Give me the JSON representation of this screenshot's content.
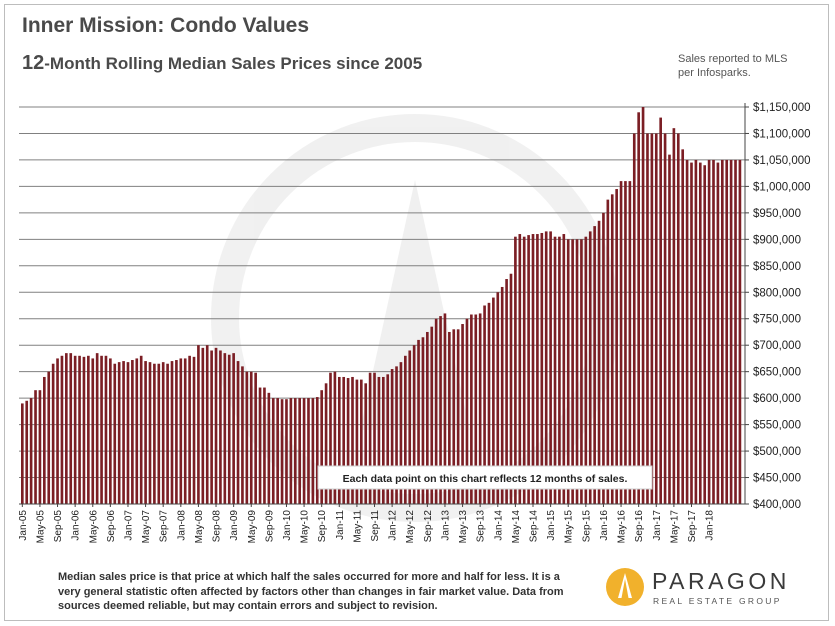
{
  "title": "Inner Mission: Condo Values",
  "subtitle_num": "12",
  "subtitle_rest": "-Month Rolling Median Sales Prices since 2005",
  "source_note": "Sales reported to MLS per Infosparks.",
  "annotation": "Each data point on this chart reflects  12 months of sales.",
  "footer": "Median sales price is that price at which half the sales occurred for more and half for less. It is a very general statistic often affected by factors other than changes in fair market value. Data from sources deemed reliable, but may contain errors and subject to revision.",
  "logo": {
    "name": "PARAGON",
    "tagline": "REAL ESTATE GROUP",
    "icon": "paragon-logo-icon",
    "accent": "#f1b12c"
  },
  "colors": {
    "bar": "#7b1e24",
    "grid": "#808080",
    "axis": "#444444"
  },
  "chart_data": {
    "type": "bar",
    "title": "Inner Mission: Condo Values",
    "subtitle": "12-Month Rolling Median Sales Prices since 2005",
    "x_start": "Jan-05",
    "x_end": "Apr-18",
    "x_ticks": [
      "Jan-05",
      "May-05",
      "Sep-05",
      "Jan-06",
      "May-06",
      "Sep-06",
      "Jan-07",
      "May-07",
      "Sep-07",
      "Jan-08",
      "May-08",
      "Sep-08",
      "Jan-09",
      "May-09",
      "Sep-09",
      "Jan-10",
      "May-10",
      "Sep-10",
      "Jan-11",
      "May-11",
      "Sep-11",
      "Jan-12",
      "May-12",
      "Sep-12",
      "Jan-13",
      "May-13",
      "Sep-13",
      "Jan-14",
      "May-14",
      "Sep-14",
      "Jan-15",
      "May-15",
      "Sep-15",
      "Jan-16",
      "May-16",
      "Sep-16",
      "Jan-17",
      "May-17",
      "Sep-17",
      "Jan-18"
    ],
    "y_ticks": [
      "$1,150,000",
      "$1,100,000",
      "$1,050,000",
      "$1,000,000",
      "$950,000",
      "$900,000",
      "$850,000",
      "$800,000",
      "$750,000",
      "$700,000",
      "$650,000",
      "$600,000",
      "$550,000",
      "$500,000",
      "$450,000",
      "$400,000"
    ],
    "ylim": [
      400000,
      1150000
    ],
    "y_axis_side": "right",
    "grid": true,
    "values": [
      590000,
      595000,
      600000,
      615000,
      615000,
      640000,
      650000,
      665000,
      675000,
      680000,
      685000,
      685000,
      680000,
      680000,
      678000,
      680000,
      675000,
      685000,
      680000,
      680000,
      675000,
      665000,
      668000,
      670000,
      668000,
      672000,
      675000,
      680000,
      670000,
      668000,
      665000,
      665000,
      668000,
      665000,
      670000,
      672000,
      675000,
      675000,
      680000,
      678000,
      700000,
      695000,
      700000,
      690000,
      695000,
      690000,
      685000,
      682000,
      685000,
      670000,
      660000,
      650000,
      650000,
      648000,
      620000,
      620000,
      610000,
      600000,
      600000,
      598000,
      598000,
      600000,
      600000,
      600000,
      600000,
      600000,
      600000,
      602000,
      615000,
      628000,
      648000,
      650000,
      640000,
      640000,
      638000,
      640000,
      635000,
      635000,
      628000,
      648000,
      648000,
      640000,
      640000,
      645000,
      655000,
      660000,
      668000,
      680000,
      690000,
      700000,
      710000,
      715000,
      725000,
      735000,
      750000,
      755000,
      760000,
      725000,
      730000,
      730000,
      740000,
      750000,
      758000,
      758000,
      760000,
      775000,
      780000,
      790000,
      800000,
      810000,
      825000,
      835000,
      905000,
      910000,
      905000,
      908000,
      910000,
      910000,
      912000,
      915000,
      915000,
      905000,
      905000,
      910000,
      900000,
      900000,
      900000,
      900000,
      905000,
      915000,
      925000,
      935000,
      950000,
      975000,
      985000,
      995000,
      1010000,
      1010000,
      1010000,
      1100000,
      1140000,
      1150000,
      1100000,
      1100000,
      1100000,
      1130000,
      1100000,
      1060000,
      1110000,
      1100000,
      1070000,
      1050000,
      1045000,
      1050000,
      1045000,
      1040000,
      1050000,
      1050000,
      1045000,
      1050000,
      1050000,
      1050000,
      1050000,
      1050000
    ]
  }
}
